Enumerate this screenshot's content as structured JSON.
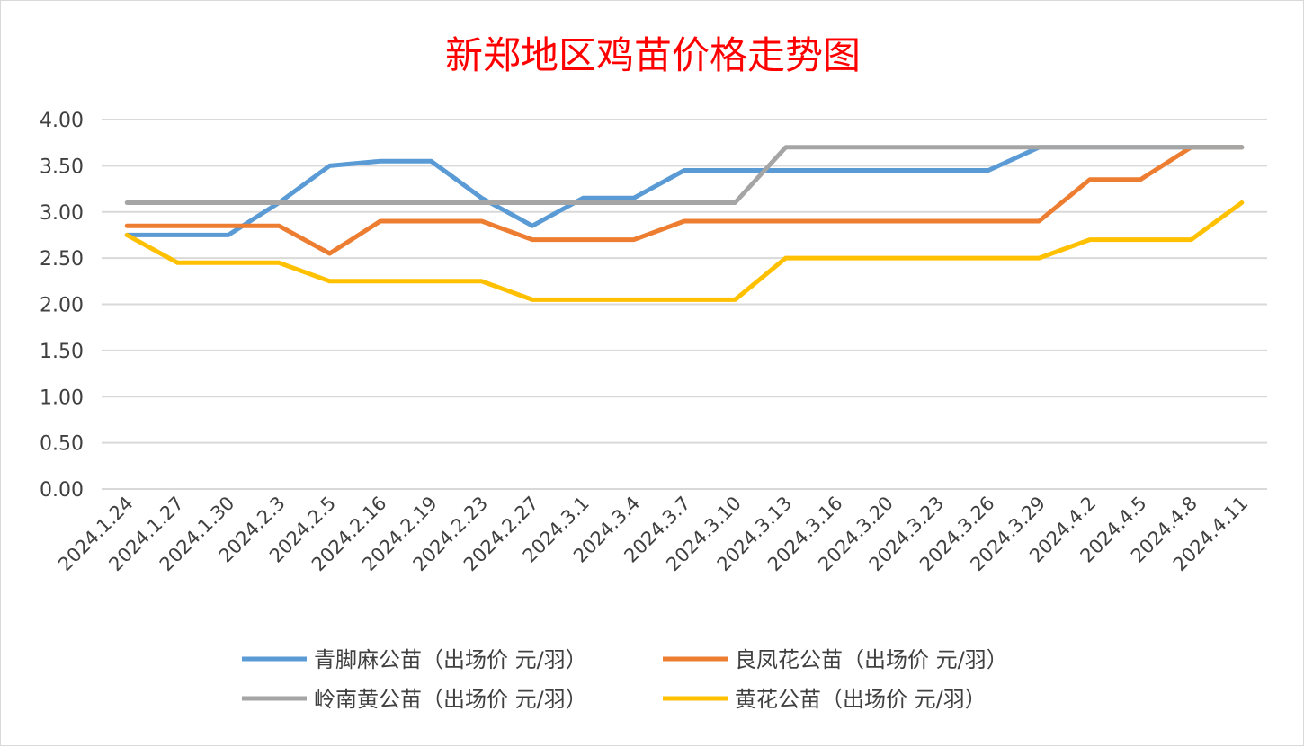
{
  "chart_data": {
    "type": "line",
    "title": "新郑地区鸡苗价格走势图",
    "xlabel": "",
    "ylabel": "",
    "ylim": [
      0,
      4
    ],
    "y_ticks": [
      "0.00",
      "0.50",
      "1.00",
      "1.50",
      "2.00",
      "2.50",
      "3.00",
      "3.50",
      "4.00"
    ],
    "grid": true,
    "legend_position": "bottom",
    "categories": [
      "2024.1.24",
      "2024.1.27",
      "2024.1.30",
      "2024.2.3",
      "2024.2.5",
      "2024.2.16",
      "2024.2.19",
      "2024.2.23",
      "2024.2.27",
      "2024.3.1",
      "2024.3.4",
      "2024.3.7",
      "2024.3.10",
      "2024.3.13",
      "2024.3.16",
      "2024.3.20",
      "2024.3.23",
      "2024.3.26",
      "2024.3.29",
      "2024.4.2",
      "2024.4.5",
      "2024.4.8",
      "2024.4.11"
    ],
    "series": [
      {
        "name": "青脚麻公苗（出场价 元/羽）",
        "color": "#5b9bd5",
        "values": [
          2.75,
          2.75,
          2.75,
          3.1,
          3.5,
          3.55,
          3.55,
          3.15,
          2.85,
          3.15,
          3.15,
          3.45,
          3.45,
          3.45,
          3.45,
          3.45,
          3.45,
          3.45,
          3.7,
          3.7,
          3.7,
          3.7,
          3.7
        ]
      },
      {
        "name": "良凤花公苗（出场价 元/羽）",
        "color": "#ed7d31",
        "values": [
          2.85,
          2.85,
          2.85,
          2.85,
          2.55,
          2.9,
          2.9,
          2.9,
          2.7,
          2.7,
          2.7,
          2.9,
          2.9,
          2.9,
          2.9,
          2.9,
          2.9,
          2.9,
          2.9,
          3.35,
          3.35,
          3.7,
          3.7
        ]
      },
      {
        "name": "岭南黄公苗（出场价 元/羽）",
        "color": "#a5a5a5",
        "values": [
          3.1,
          3.1,
          3.1,
          3.1,
          3.1,
          3.1,
          3.1,
          3.1,
          3.1,
          3.1,
          3.1,
          3.1,
          3.1,
          3.7,
          3.7,
          3.7,
          3.7,
          3.7,
          3.7,
          3.7,
          3.7,
          3.7,
          3.7
        ]
      },
      {
        "name": "黄花公苗（出场价 元/羽）",
        "color": "#ffc000",
        "values": [
          2.75,
          2.45,
          2.45,
          2.45,
          2.25,
          2.25,
          2.25,
          2.25,
          2.05,
          2.05,
          2.05,
          2.05,
          2.05,
          2.5,
          2.5,
          2.5,
          2.5,
          2.5,
          2.5,
          2.7,
          2.7,
          2.7,
          3.1
        ]
      }
    ]
  }
}
